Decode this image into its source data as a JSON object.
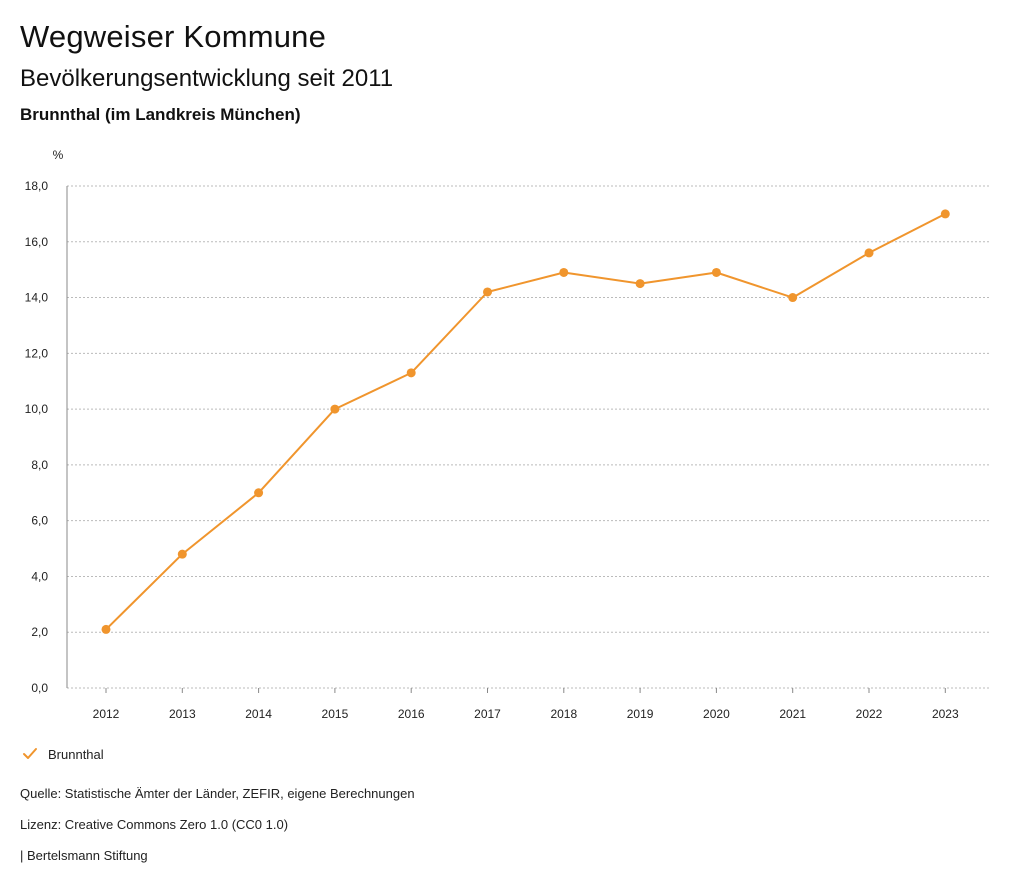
{
  "header": {
    "title": "Wegweiser Kommune",
    "subtitle": "Bevölkerungsentwicklung seit 2011",
    "region": "Brunnthal (im Landkreis München)"
  },
  "legend": {
    "label": "Brunnthal"
  },
  "footer": {
    "source": "Quelle: Statistische Ämter der Länder, ZEFIR, eigene Berechnungen",
    "license": "Lizenz: Creative Commons Zero 1.0 (CC0 1.0)",
    "publisher": "| Bertelsmann Stiftung"
  },
  "colors": {
    "series": "#f0952d",
    "grid": "#bbbbbb",
    "axis": "#888888"
  },
  "chart_data": {
    "type": "line",
    "title": "Bevölkerungsentwicklung seit 2011",
    "xlabel": "",
    "ylabel": "%",
    "x": [
      "2012",
      "2013",
      "2014",
      "2015",
      "2016",
      "2017",
      "2018",
      "2019",
      "2020",
      "2021",
      "2022",
      "2023"
    ],
    "series": [
      {
        "name": "Brunnthal",
        "values": [
          2.1,
          4.8,
          7.0,
          10.0,
          11.3,
          14.2,
          14.9,
          14.5,
          14.9,
          14.0,
          15.6,
          17.0
        ]
      }
    ],
    "ylim": [
      0,
      18
    ],
    "yticks": [
      "0,0",
      "2,0",
      "4,0",
      "6,0",
      "8,0",
      "10,0",
      "12,0",
      "14,0",
      "16,0",
      "18,0"
    ],
    "grid": true,
    "legend_position": "bottom-left"
  }
}
